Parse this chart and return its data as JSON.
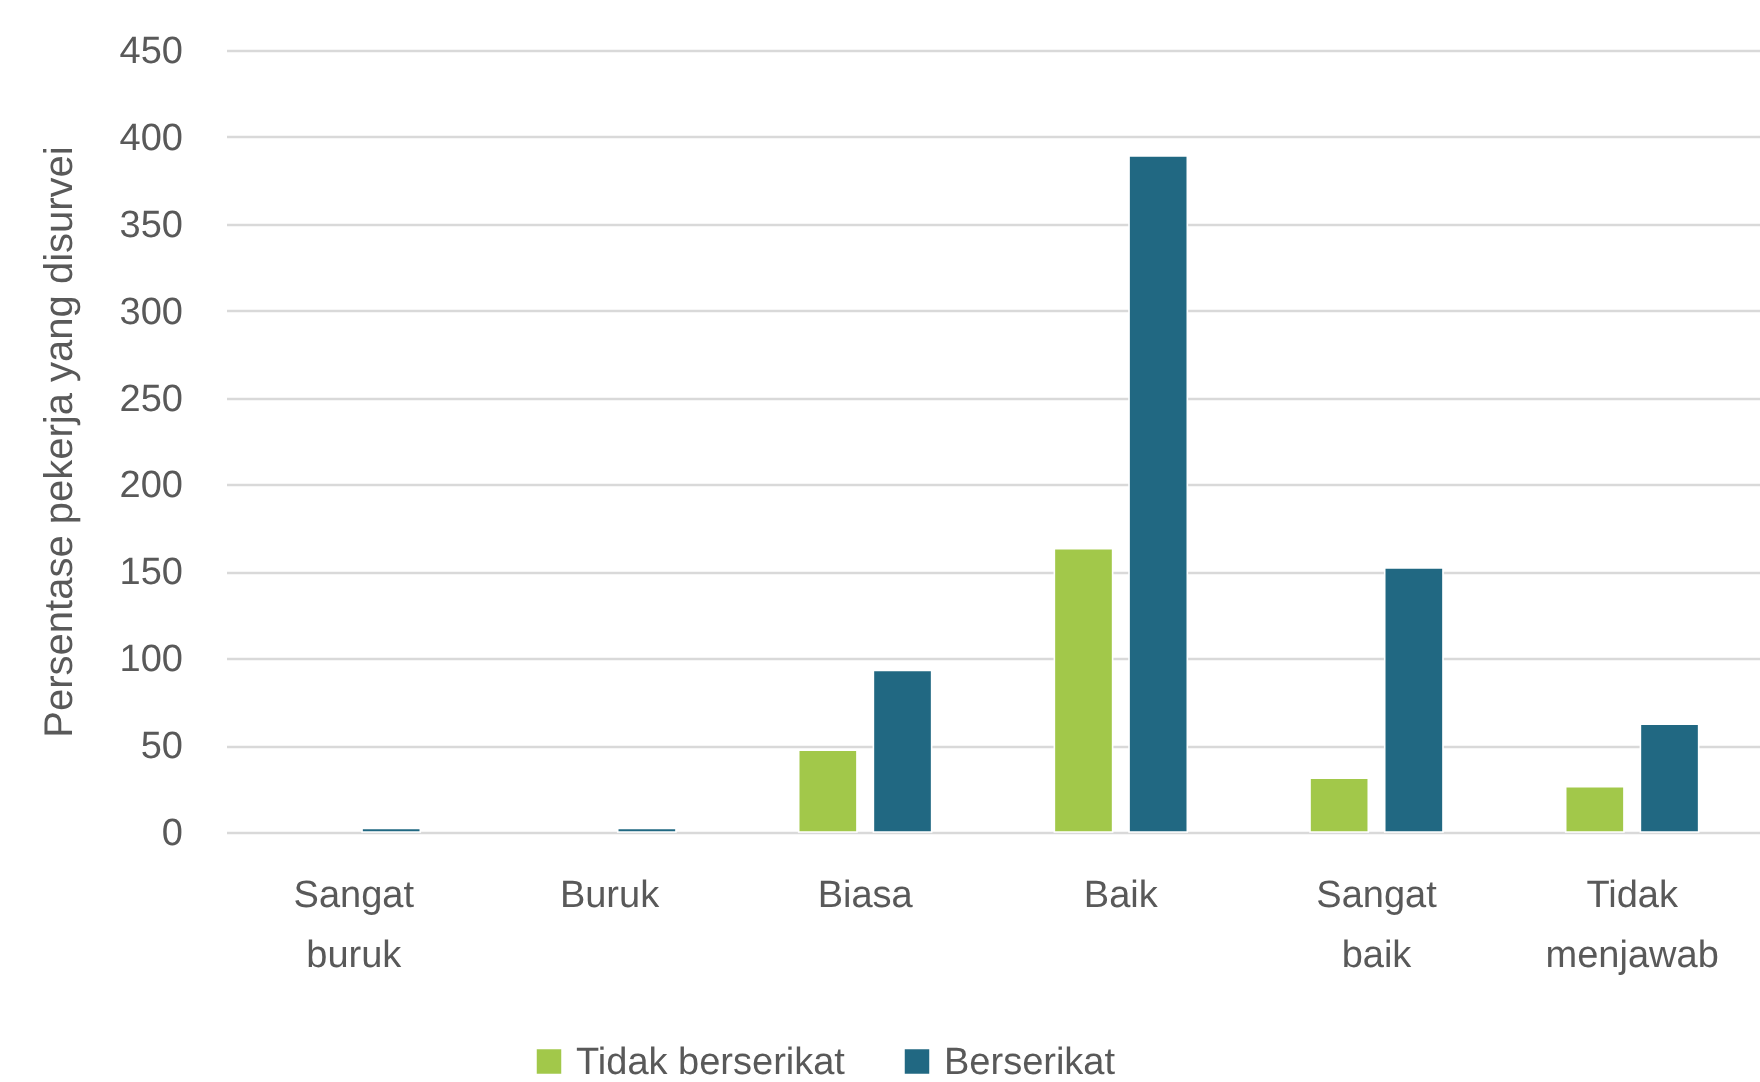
{
  "chart_data": {
    "type": "bar",
    "ylabel": "Persentase pekerja yang disurvei",
    "categories": [
      "Sangat buruk",
      "Buruk",
      "Biasa",
      "Baik",
      "Sangat baik",
      "Tidak menjawab"
    ],
    "series": [
      {
        "name": "Tidak berserikat",
        "color": "#a2c84a",
        "values": [
          null,
          null,
          47,
          163,
          31,
          26
        ]
      },
      {
        "name": "Berserikat",
        "color": "#216882",
        "values": [
          2,
          2,
          93,
          389,
          152,
          62
        ]
      }
    ],
    "ylim": [
      0,
      450
    ],
    "yticks": [
      0,
      50,
      100,
      150,
      200,
      250,
      300,
      350,
      400,
      450
    ],
    "grid": "y",
    "legend": "bottom"
  }
}
